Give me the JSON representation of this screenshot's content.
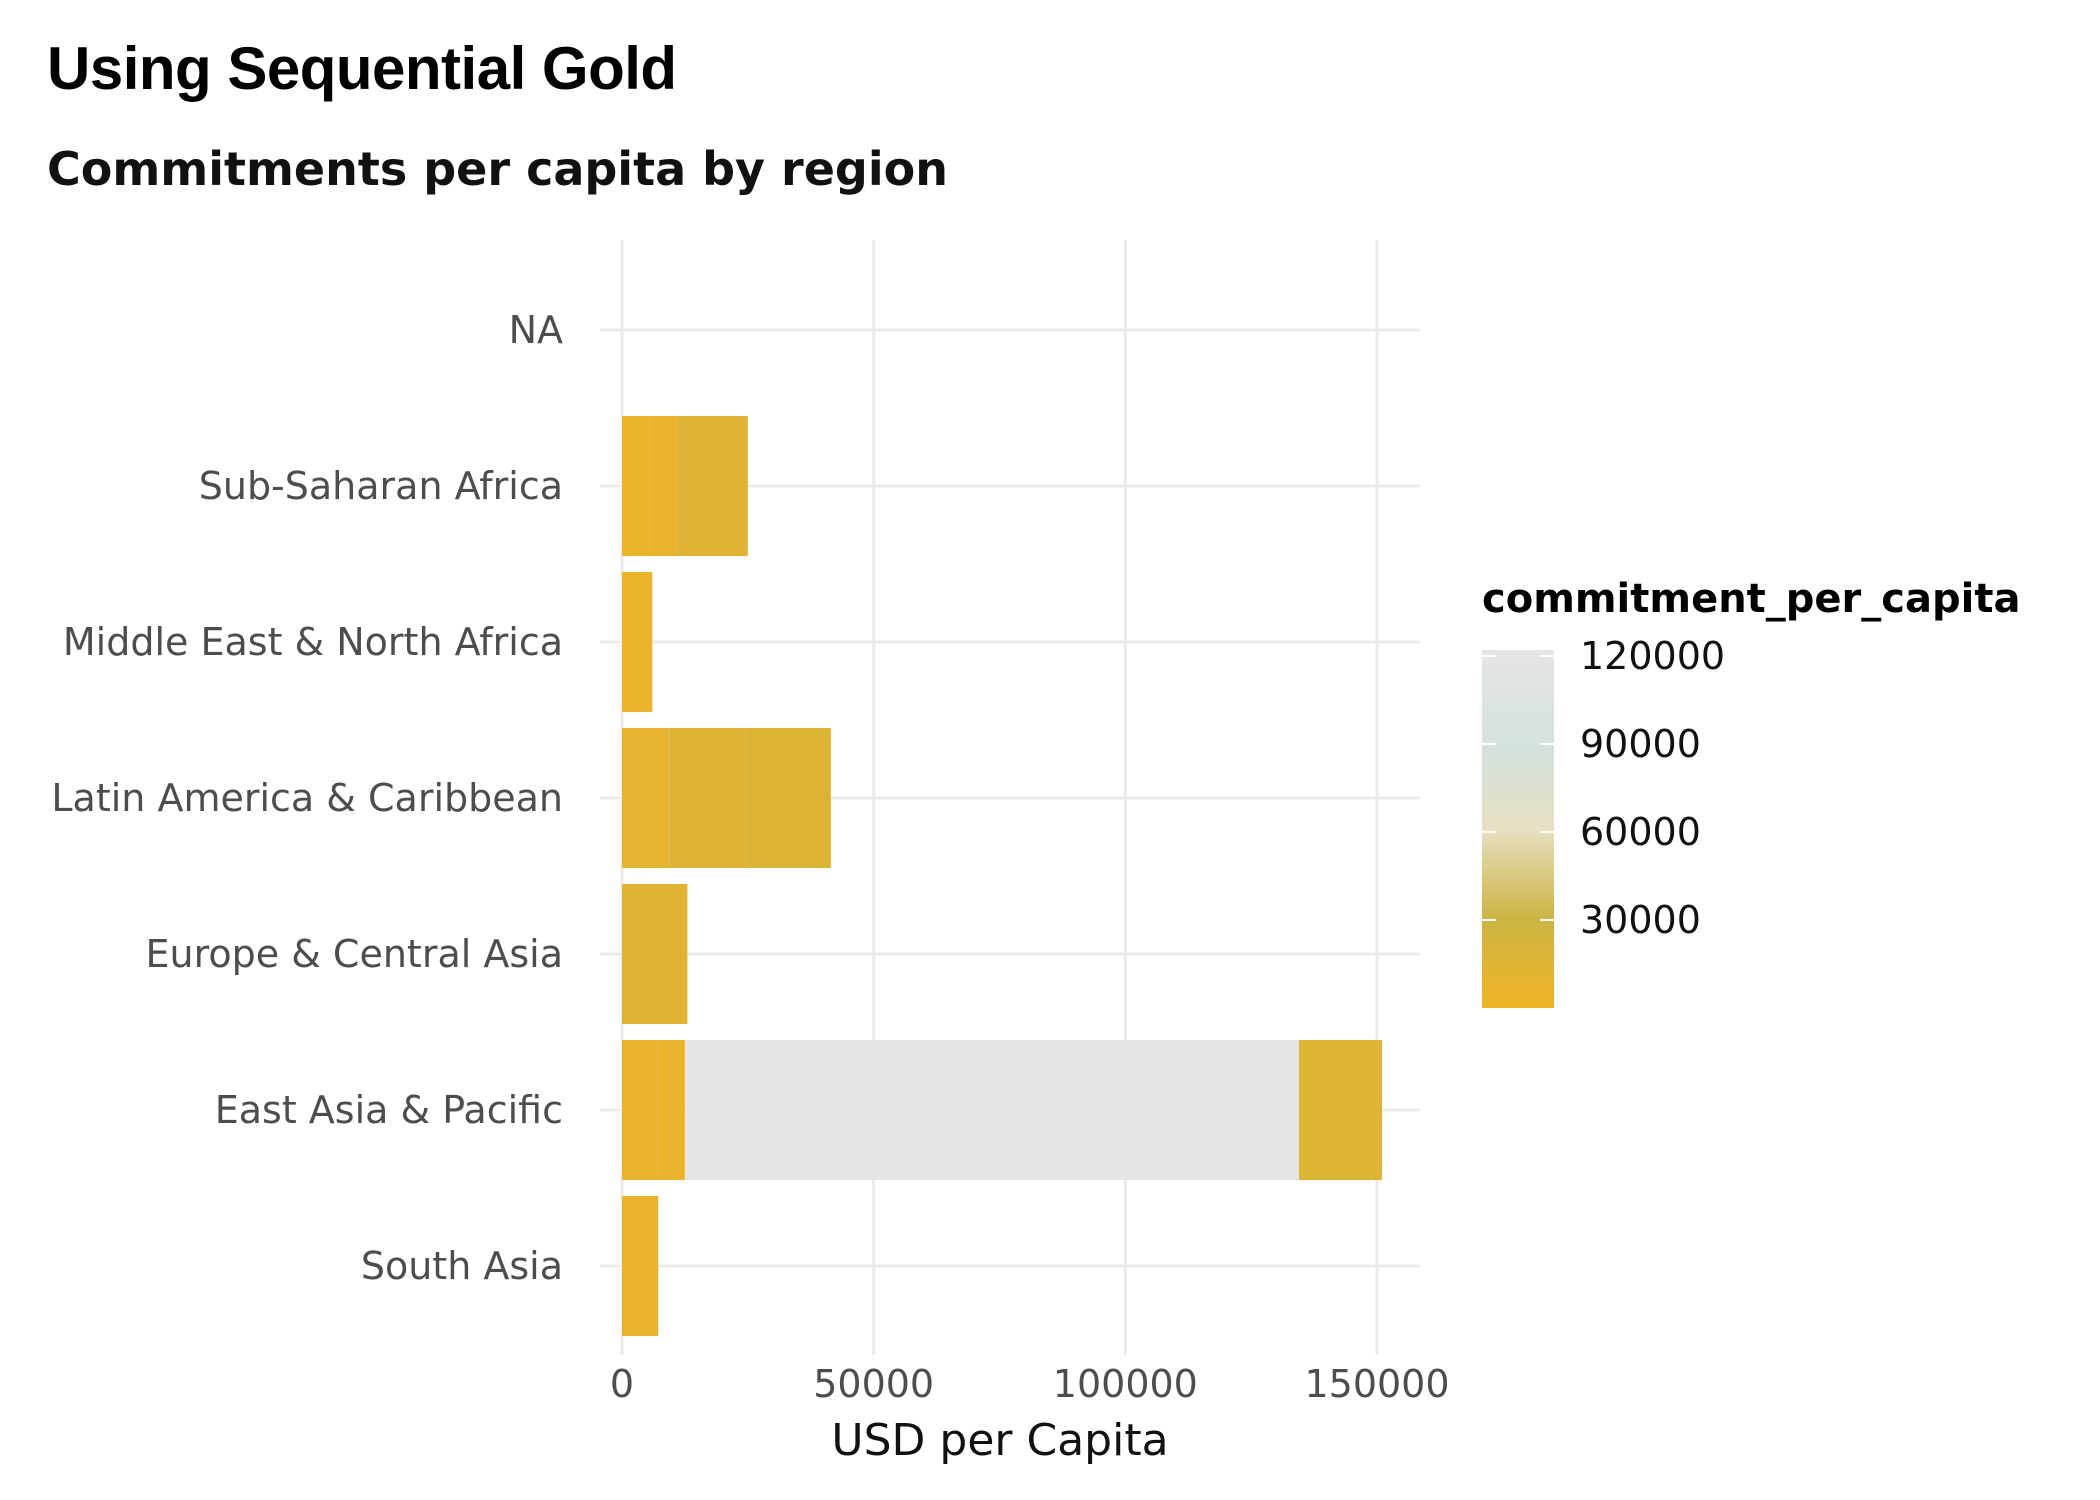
{
  "chart_data": {
    "type": "bar",
    "orientation": "horizontal",
    "stacked": true,
    "title": "Using Sequential Gold",
    "subtitle": "Commitments per capita by region",
    "xlabel": "USD per Capita",
    "ylabel": "",
    "xlim": [
      0,
      160000
    ],
    "x_ticks": [
      0,
      50000,
      100000,
      150000
    ],
    "categories": [
      "NA",
      "Sub-Saharan Africa",
      "Middle East & North Africa",
      "Latin America & Caribbean",
      "Europe & Central Asia",
      "East Asia & Pacific",
      "South Asia"
    ],
    "segments": [
      {
        "category": "Sub-Saharan Africa",
        "values": [
          1500,
          4000,
          5500,
          14000
        ]
      },
      {
        "category": "Middle East & North Africa",
        "values": [
          1500,
          4500
        ]
      },
      {
        "category": "Latin America & Caribbean",
        "values": [
          9500,
          15000,
          17000
        ]
      },
      {
        "category": "Europe & Central Asia",
        "values": [
          13000
        ]
      },
      {
        "category": "East Asia & Pacific",
        "values": [
          7000,
          5500,
          122000,
          16500
        ]
      },
      {
        "category": "South Asia",
        "values": [
          7200
        ]
      }
    ],
    "legend": {
      "title": "commitment_per_capita",
      "ticks": [
        120000,
        90000,
        60000,
        30000
      ],
      "range": [
        0,
        122000
      ],
      "placement": "right",
      "colors": [
        "#EFB325",
        "#CCB444",
        "#E6DFC2",
        "#D3E1DC",
        "#E5E5E5"
      ]
    },
    "grid": true
  }
}
